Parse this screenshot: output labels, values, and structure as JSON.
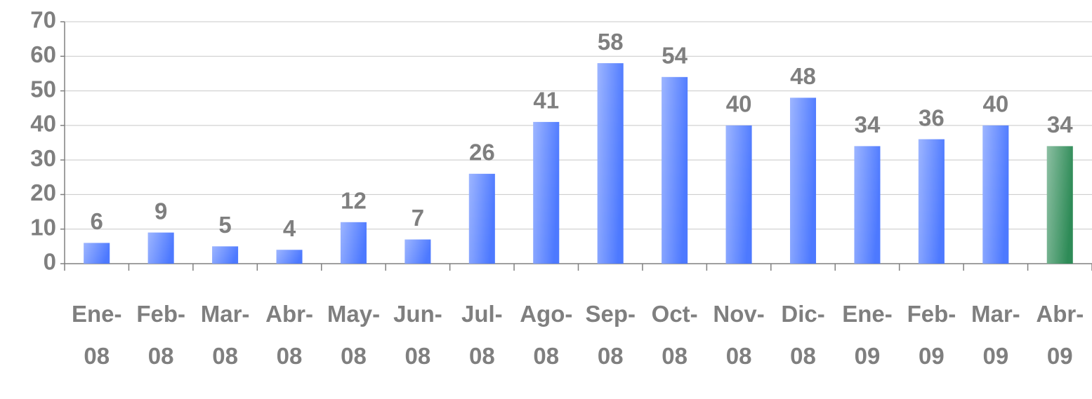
{
  "chart_data": {
    "type": "bar",
    "categories": [
      "Ene-08",
      "Feb-08",
      "Mar-08",
      "Abr-08",
      "May-08",
      "Jun-08",
      "Jul-08",
      "Ago-08",
      "Sep-08",
      "Oct-08",
      "Nov-08",
      "Dic-08",
      "Ene-09",
      "Feb-09",
      "Mar-09",
      "Abr-09"
    ],
    "values": [
      6,
      9,
      5,
      4,
      12,
      7,
      26,
      41,
      58,
      54,
      40,
      48,
      34,
      36,
      40,
      34
    ],
    "colors": [
      "#4d79ff",
      "#4d79ff",
      "#4d79ff",
      "#4d79ff",
      "#4d79ff",
      "#4d79ff",
      "#4d79ff",
      "#4d79ff",
      "#4d79ff",
      "#4d79ff",
      "#4d79ff",
      "#4d79ff",
      "#4d79ff",
      "#4d79ff",
      "#4d79ff",
      "#2e8b57"
    ],
    "ylim": [
      0,
      70
    ],
    "yticks": [
      0,
      10,
      20,
      30,
      40,
      50,
      60,
      70
    ],
    "grid": true
  }
}
